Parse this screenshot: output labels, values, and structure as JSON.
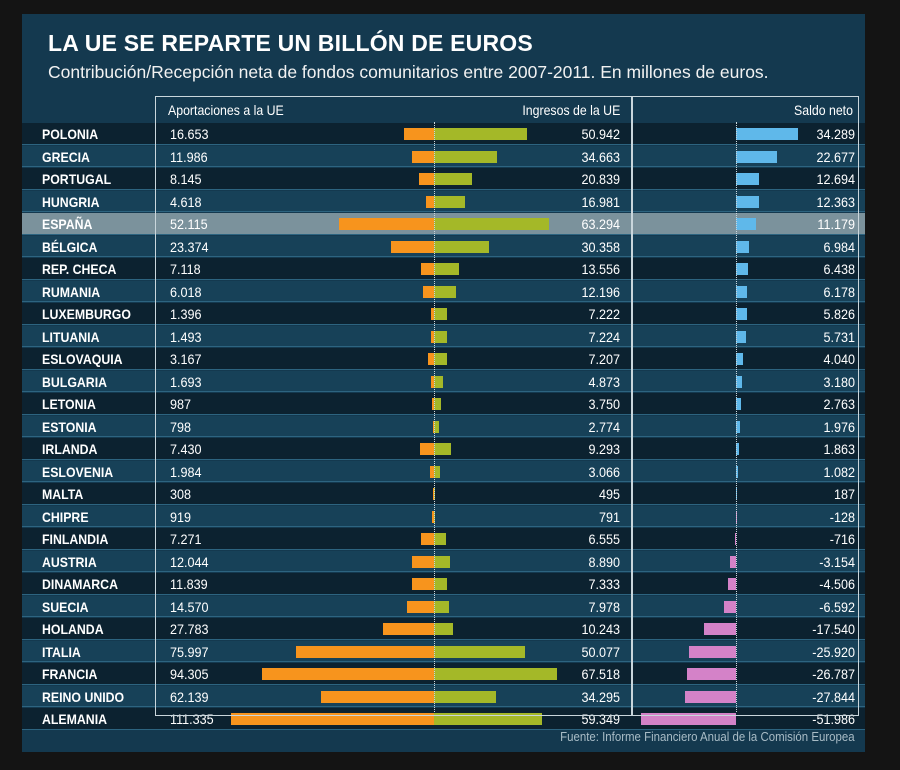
{
  "chart_data": {
    "type": "bar",
    "title": "LA UE SE REPARTE UN BILLÓN DE EUROS",
    "subtitle": "Contribución/Recepción neta de fondos comunitarios entre 2007-2011. En millones de euros.",
    "highlight": "ESPAÑA",
    "categories": [
      "POLONIA",
      "GRECIA",
      "PORTUGAL",
      "HUNGRIA",
      "ESPAÑA",
      "BÉLGICA",
      "REP. CHECA",
      "RUMANIA",
      "LUXEMBURGO",
      "LITUANIA",
      "ESLOVAQUIA",
      "BULGARIA",
      "LETONIA",
      "ESTONIA",
      "IRLANDA",
      "ESLOVENIA",
      "MALTA",
      "CHIPRE",
      "FINLANDIA",
      "AUSTRIA",
      "DINAMARCA",
      "SUECIA",
      "HOLANDA",
      "ITALIA",
      "FRANCIA",
      "REINO UNIDO",
      "ALEMANIA"
    ],
    "series": [
      {
        "name": "Aportaciones a la UE",
        "color": "#f7941d",
        "values": [
          16653,
          11986,
          8145,
          4618,
          52115,
          23374,
          7118,
          6018,
          1396,
          1493,
          3167,
          1693,
          987,
          798,
          7430,
          1984,
          308,
          919,
          7271,
          12044,
          11839,
          14570,
          27783,
          75997,
          94305,
          62139,
          111335
        ]
      },
      {
        "name": "Ingresos de la UE",
        "color": "#a4b828",
        "values": [
          50942,
          34663,
          20839,
          16981,
          63294,
          30358,
          13556,
          12196,
          7222,
          7224,
          7207,
          4873,
          3750,
          2774,
          9293,
          3066,
          495,
          791,
          6555,
          8890,
          7333,
          7978,
          10243,
          50077,
          67518,
          34295,
          59349
        ]
      },
      {
        "name": "Saldo neto",
        "color_positive": "#5fb8ea",
        "color_negative": "#d482c8",
        "values": [
          34289,
          22677,
          12694,
          12363,
          11179,
          6984,
          6438,
          6178,
          5826,
          5731,
          4040,
          3180,
          2763,
          1976,
          1863,
          1082,
          187,
          -128,
          -716,
          -3154,
          -4506,
          -6592,
          -17540,
          -25920,
          -26787,
          -27844,
          -51986
        ]
      }
    ],
    "source": "Fuente: Informe Financiero Anual de la Comisión Europea"
  }
}
